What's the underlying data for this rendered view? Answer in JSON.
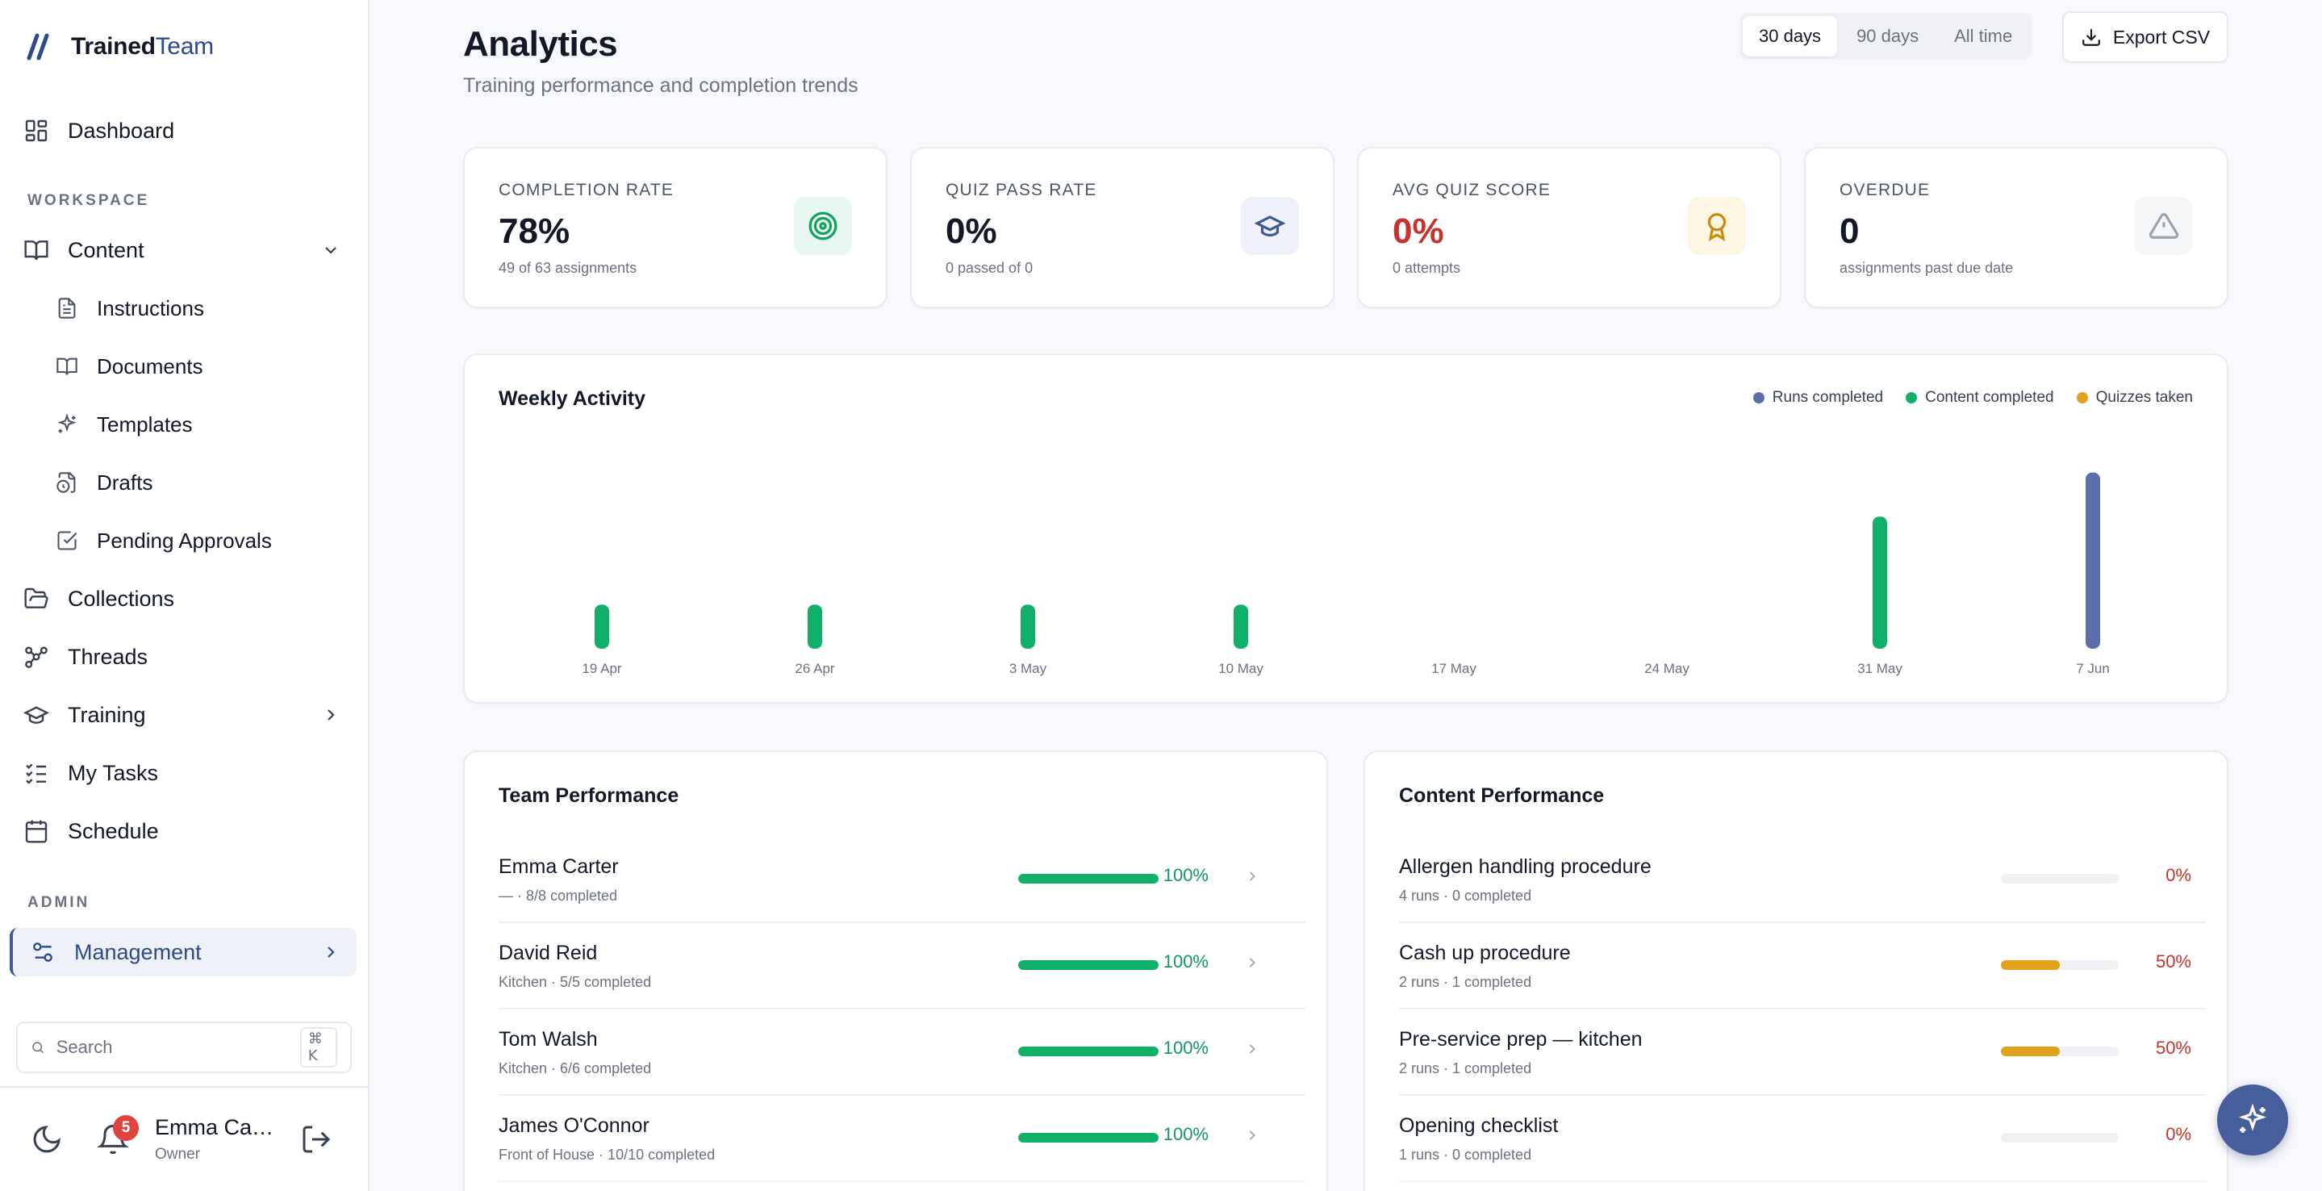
{
  "brand": {
    "name_a": "Trained",
    "name_b": "Team"
  },
  "sidebar": {
    "dashboard": "Dashboard",
    "workspace_label": "WORKSPACE",
    "content": "Content",
    "content_items": [
      "Instructions",
      "Documents",
      "Templates",
      "Drafts",
      "Pending Approvals"
    ],
    "collections": "Collections",
    "threads": "Threads",
    "training": "Training",
    "my_tasks": "My Tasks",
    "schedule": "Schedule",
    "admin_label": "ADMIN",
    "management": "Management",
    "search_placeholder": "Search",
    "search_shortcut": "⌘ K",
    "notifications_count": "5",
    "user_name": "Emma Car...",
    "user_role": "Owner"
  },
  "header": {
    "title": "Analytics",
    "subtitle": "Training performance and completion trends",
    "ranges": [
      "30 days",
      "90 days",
      "All time"
    ],
    "active_range": "30 days",
    "export_label": "Export CSV"
  },
  "kpis": [
    {
      "label": "COMPLETION RATE",
      "value": "78%",
      "sub": "49 of 63 assignments",
      "icon": "target-icon",
      "tone": "green"
    },
    {
      "label": "QUIZ PASS RATE",
      "value": "0%",
      "sub": "0 passed of 0",
      "icon": "graduation-cap-icon",
      "tone": "blue"
    },
    {
      "label": "AVG QUIZ SCORE",
      "value": "0%",
      "sub": "0 attempts",
      "icon": "award-icon",
      "tone": "amber"
    },
    {
      "label": "OVERDUE",
      "value": "0",
      "sub": "assignments past due date",
      "icon": "alert-triangle-icon",
      "tone": "gray"
    }
  ],
  "weekly": {
    "title": "Weekly Activity",
    "chart_data": {
      "type": "bar",
      "categories": [
        "19 Apr",
        "26 Apr",
        "3 May",
        "10 May",
        "17 May",
        "24 May",
        "31 May",
        "7 Jun"
      ],
      "series": [
        {
          "name": "Runs completed",
          "color": "#5b6fa8",
          "values": [
            0,
            0,
            0,
            0,
            0,
            0,
            0,
            8
          ]
        },
        {
          "name": "Content completed",
          "color": "#10b068",
          "values": [
            2,
            2,
            2,
            2,
            0,
            0,
            6,
            0
          ]
        },
        {
          "name": "Quizzes taken",
          "color": "#e0a21b",
          "values": [
            0,
            0,
            0,
            0,
            0,
            0,
            0,
            0
          ]
        }
      ],
      "ylim": [
        0,
        8.5
      ]
    }
  },
  "team": {
    "title": "Team Performance",
    "rows": [
      {
        "name": "Emma Carter",
        "sub": "— · 8/8 completed",
        "value": 100,
        "pct": "100%"
      },
      {
        "name": "David Reid",
        "sub": "Kitchen · 5/5 completed",
        "value": 100,
        "pct": "100%"
      },
      {
        "name": "Tom Walsh",
        "sub": "Kitchen · 6/6 completed",
        "value": 100,
        "pct": "100%"
      },
      {
        "name": "James O'Connor",
        "sub": "Front of House · 10/10 completed",
        "value": 100,
        "pct": "100%"
      }
    ]
  },
  "content_perf": {
    "title": "Content Performance",
    "rows": [
      {
        "name": "Allergen handling procedure",
        "sub": "4 runs · 0 completed",
        "value": 0,
        "pct": "0%"
      },
      {
        "name": "Cash up procedure",
        "sub": "2 runs · 1 completed",
        "value": 50,
        "pct": "50%"
      },
      {
        "name": "Pre-service prep — kitchen",
        "sub": "2 runs · 1 completed",
        "value": 50,
        "pct": "50%"
      },
      {
        "name": "Opening checklist",
        "sub": "1 runs · 0 completed",
        "value": 0,
        "pct": "0%"
      }
    ]
  },
  "colors": {
    "accent": "#2f4a8a",
    "green": "#10b068",
    "amber": "#e0a21b",
    "red": "#c8322c"
  }
}
